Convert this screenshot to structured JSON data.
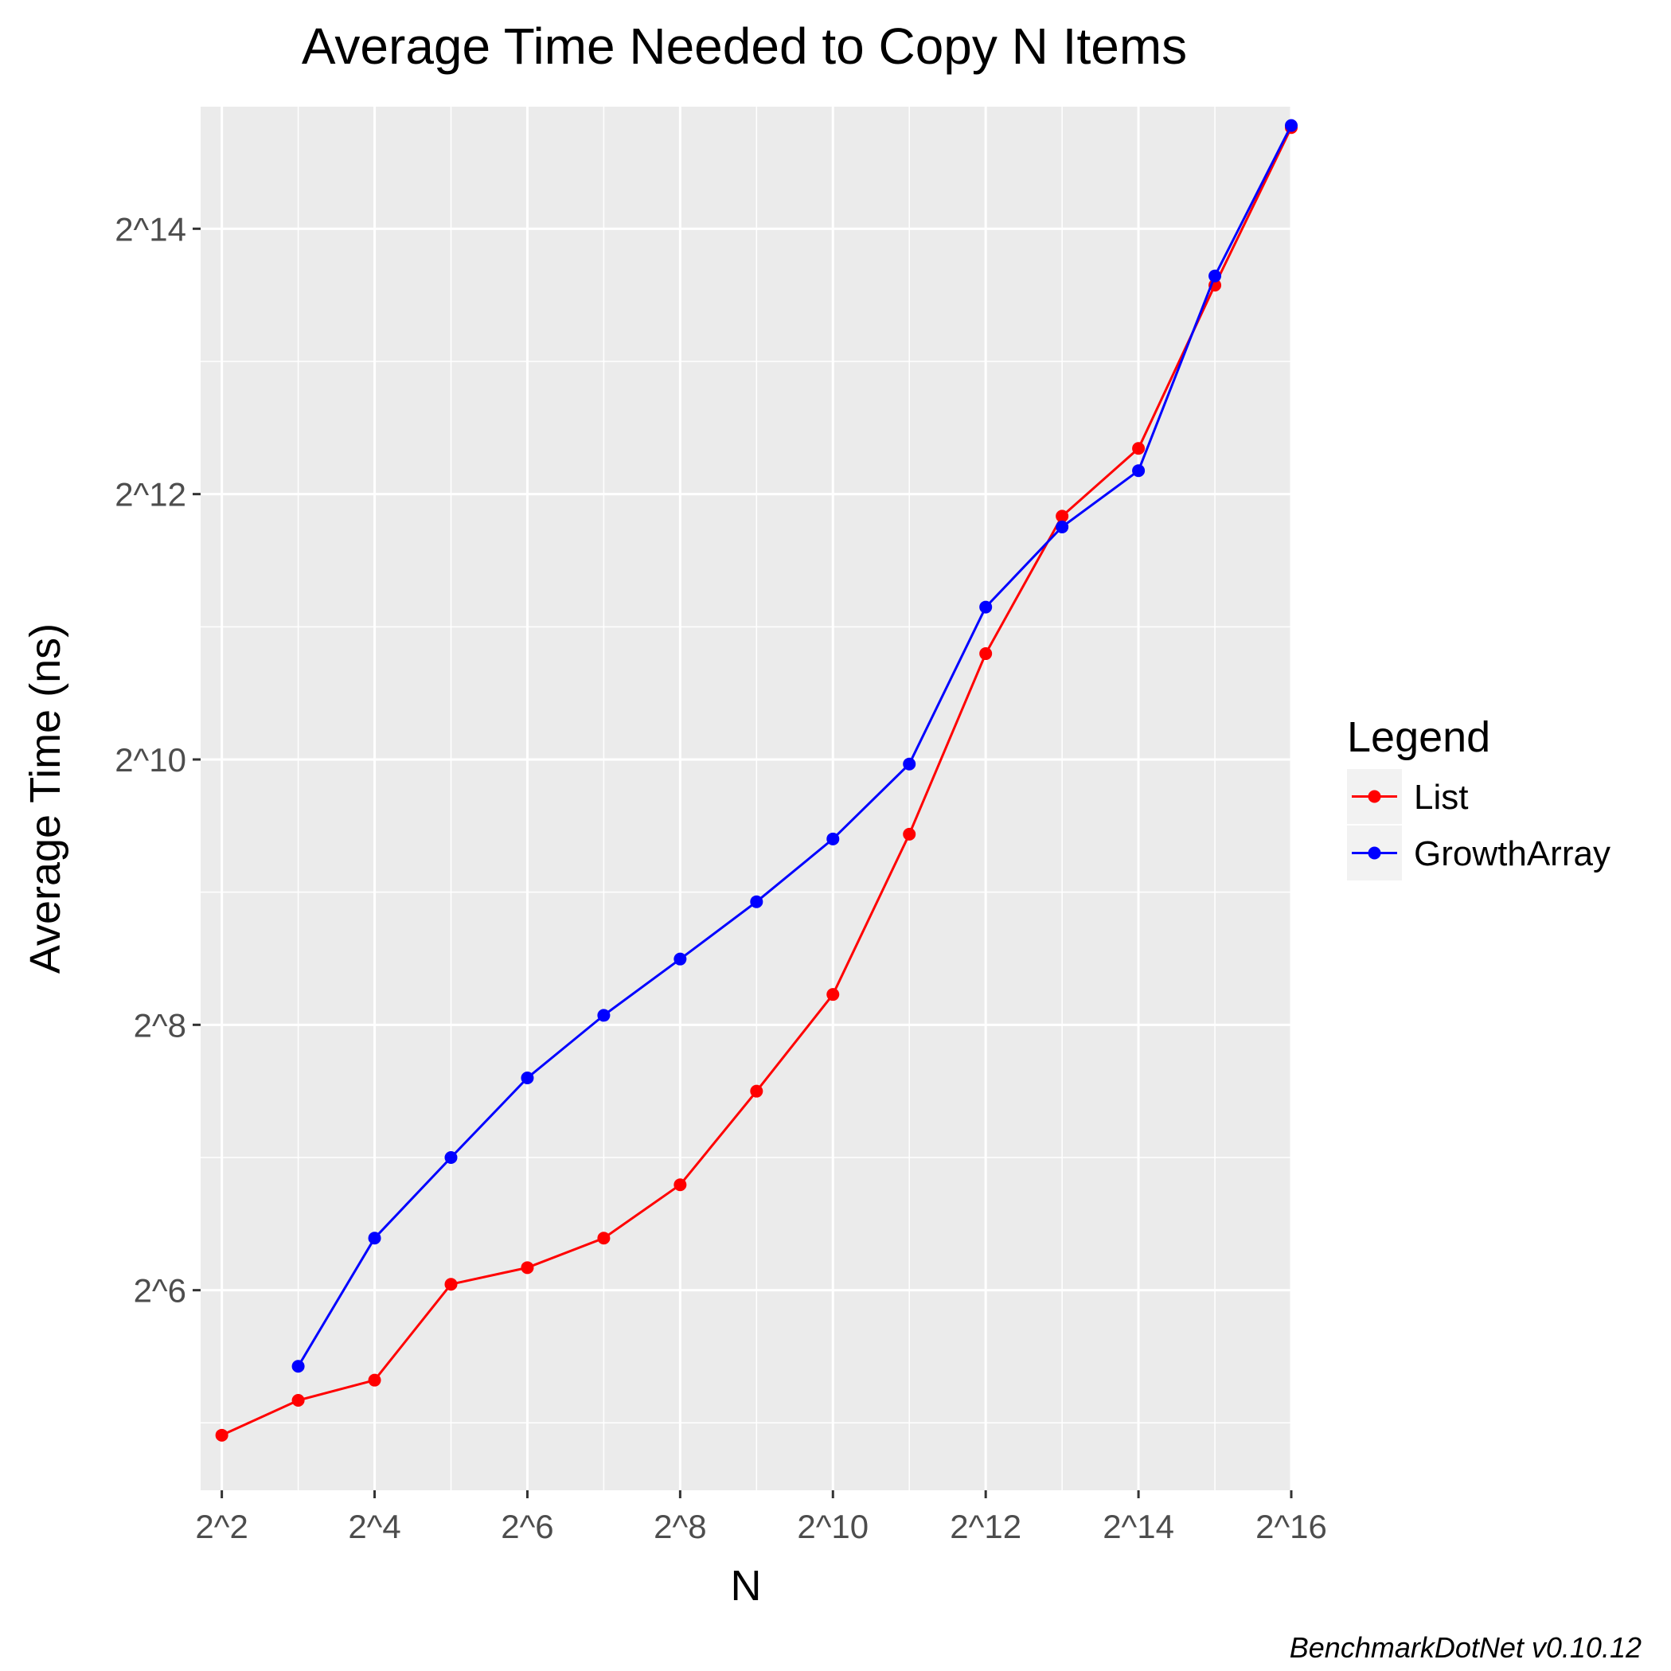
{
  "chart_data": {
    "type": "line",
    "title": "Average Time Needed to Copy N Items",
    "xlabel": "N",
    "ylabel": "Average Time (ns)",
    "x_scale": "log2",
    "y_scale": "log2",
    "xlim": [
      3.3,
      65536
    ],
    "ylim": [
      22.5,
      31000
    ],
    "x_ticks": [
      4,
      16,
      64,
      256,
      1024,
      4096,
      16384,
      65536
    ],
    "x_tick_labels": [
      "2^2",
      "2^4",
      "2^6",
      "2^8",
      "2^10",
      "2^12",
      "2^14",
      "2^16"
    ],
    "y_ticks": [
      64,
      256,
      1024,
      4096,
      16384
    ],
    "y_tick_labels": [
      "2^6",
      "2^8",
      "2^10",
      "2^12",
      "2^14"
    ],
    "grid": true,
    "legend_title": "Legend",
    "legend_position": "right",
    "series": [
      {
        "name": "List",
        "color": "#ff0000",
        "x": [
          4,
          8,
          16,
          32,
          64,
          128,
          256,
          512,
          1024,
          2048,
          4096,
          8192,
          16384,
          32768,
          65536
        ],
        "y": [
          30,
          36,
          40,
          66,
          72,
          84,
          111,
          181,
          300,
          693,
          1780,
          3650,
          5200,
          12200,
          27800
        ]
      },
      {
        "name": "GrowthArray",
        "color": "#0000ff",
        "x": [
          8,
          16,
          32,
          64,
          128,
          256,
          512,
          1024,
          2048,
          4096,
          8192,
          16384,
          32768,
          65536
        ],
        "y": [
          43,
          84,
          128,
          194,
          269,
          361,
          487,
          676,
          1000,
          2270,
          3450,
          4630,
          12800,
          28100
        ]
      }
    ]
  },
  "caption": "BenchmarkDotNet v0.10.12"
}
